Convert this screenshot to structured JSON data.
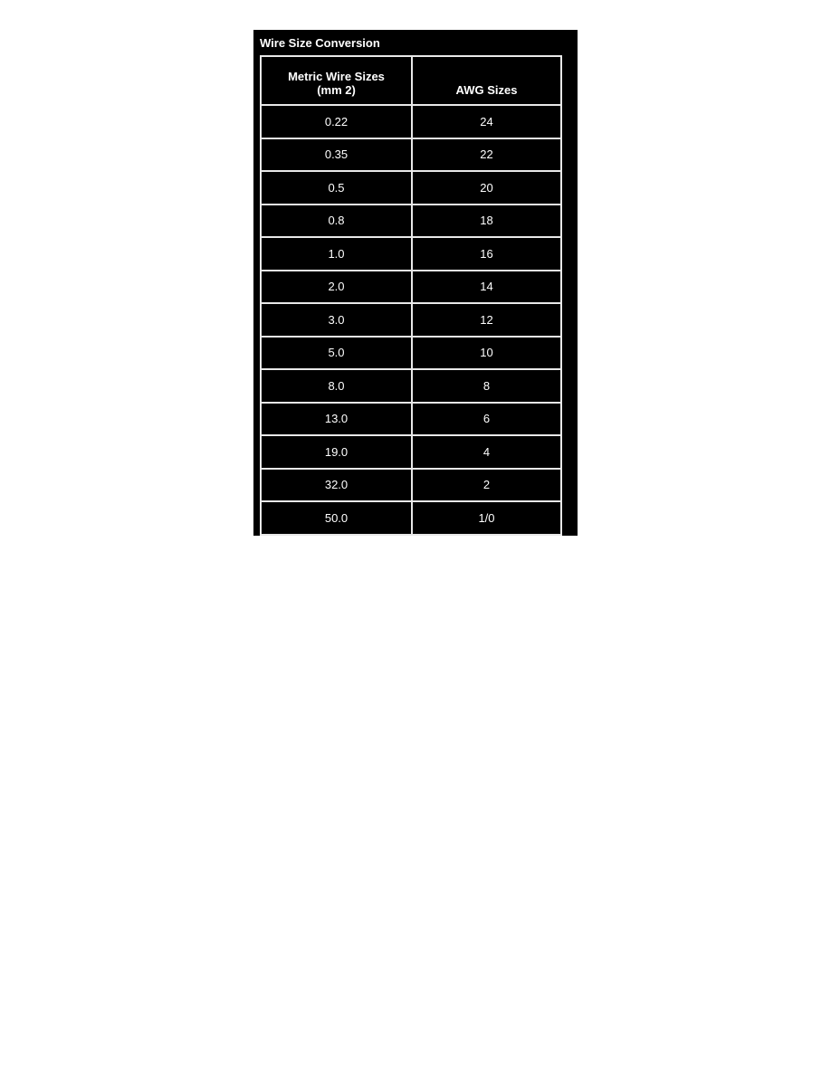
{
  "title": "Wire Size Conversion",
  "headers": {
    "metric_line1": "Metric Wire Sizes",
    "metric_line2": "(mm 2)",
    "awg": "AWG Sizes"
  },
  "rows": [
    {
      "metric": "0.22",
      "awg": "24"
    },
    {
      "metric": "0.35",
      "awg": "22"
    },
    {
      "metric": "0.5",
      "awg": "20"
    },
    {
      "metric": "0.8",
      "awg": "18"
    },
    {
      "metric": "1.0",
      "awg": "16"
    },
    {
      "metric": "2.0",
      "awg": "14"
    },
    {
      "metric": "3.0",
      "awg": "12"
    },
    {
      "metric": "5.0",
      "awg": "10"
    },
    {
      "metric": "8.0",
      "awg": "8"
    },
    {
      "metric": "13.0",
      "awg": "6"
    },
    {
      "metric": "19.0",
      "awg": "4"
    },
    {
      "metric": "32.0",
      "awg": "2"
    },
    {
      "metric": "50.0",
      "awg": "1/0"
    }
  ]
}
